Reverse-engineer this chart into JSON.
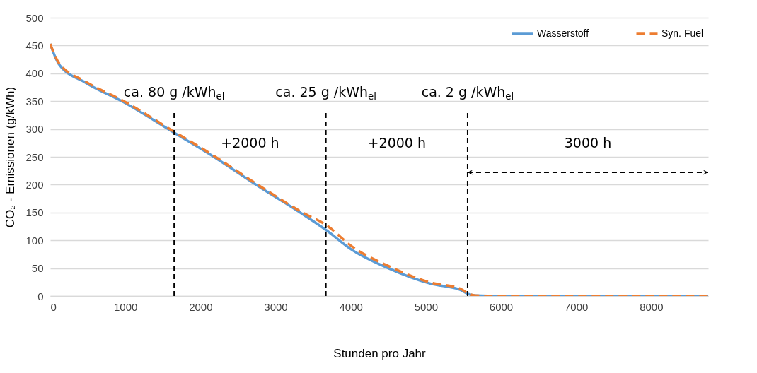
{
  "chart_data": {
    "type": "line",
    "xlabel": "Stunden pro Jahr",
    "ylabel": "CO₂ - Emissionen (g/kWh)",
    "x": [
      0,
      113,
      473,
      980,
      1641,
      2177,
      2773,
      3372,
      3668,
      4027,
      4500,
      5067,
      5462,
      5557,
      5655,
      6000,
      8760
    ],
    "series": [
      {
        "name": "Wasserstoff",
        "color": "#5b9bd5",
        "line_style": "solid",
        "values": [
          453,
          417,
          383,
          348,
          294,
          250,
          197,
          146,
          119,
          82,
          50,
          22,
          11,
          4,
          1,
          0,
          0
        ]
      },
      {
        "name": "Syn. Fuel",
        "color": "#ed7d31",
        "line_style": "dashed",
        "values": [
          453,
          419,
          385,
          350,
          296,
          252,
          199,
          149,
          128,
          88,
          54,
          24,
          13,
          5,
          1,
          0,
          0
        ]
      }
    ],
    "xlim": [
      0,
      8760
    ],
    "ylim": [
      0,
      500
    ],
    "xticks": [
      0,
      1000,
      2000,
      3000,
      4000,
      5000,
      6000,
      7000,
      8000
    ],
    "yticks": [
      0,
      50,
      100,
      150,
      200,
      250,
      300,
      350,
      400,
      450,
      500
    ],
    "grid": "y",
    "legend": "top right",
    "marker": "none",
    "ref_lines": [
      {
        "axis": "x",
        "value": 1650,
        "line_style": "dashed",
        "color": "#000000"
      },
      {
        "axis": "x",
        "value": 3670,
        "line_style": "dashed",
        "color": "#000000"
      },
      {
        "axis": "x",
        "value": 5557,
        "line_style": "dashed",
        "color": "#000000"
      }
    ],
    "annotations": [
      "ca. 80 g /kWh$_{el}$",
      "ca. 25 g /kWh$_{el}$",
      "ca. 2 g /kWh$_{el}$",
      "+2000 h",
      "+2000 h",
      "3000 h"
    ]
  }
}
